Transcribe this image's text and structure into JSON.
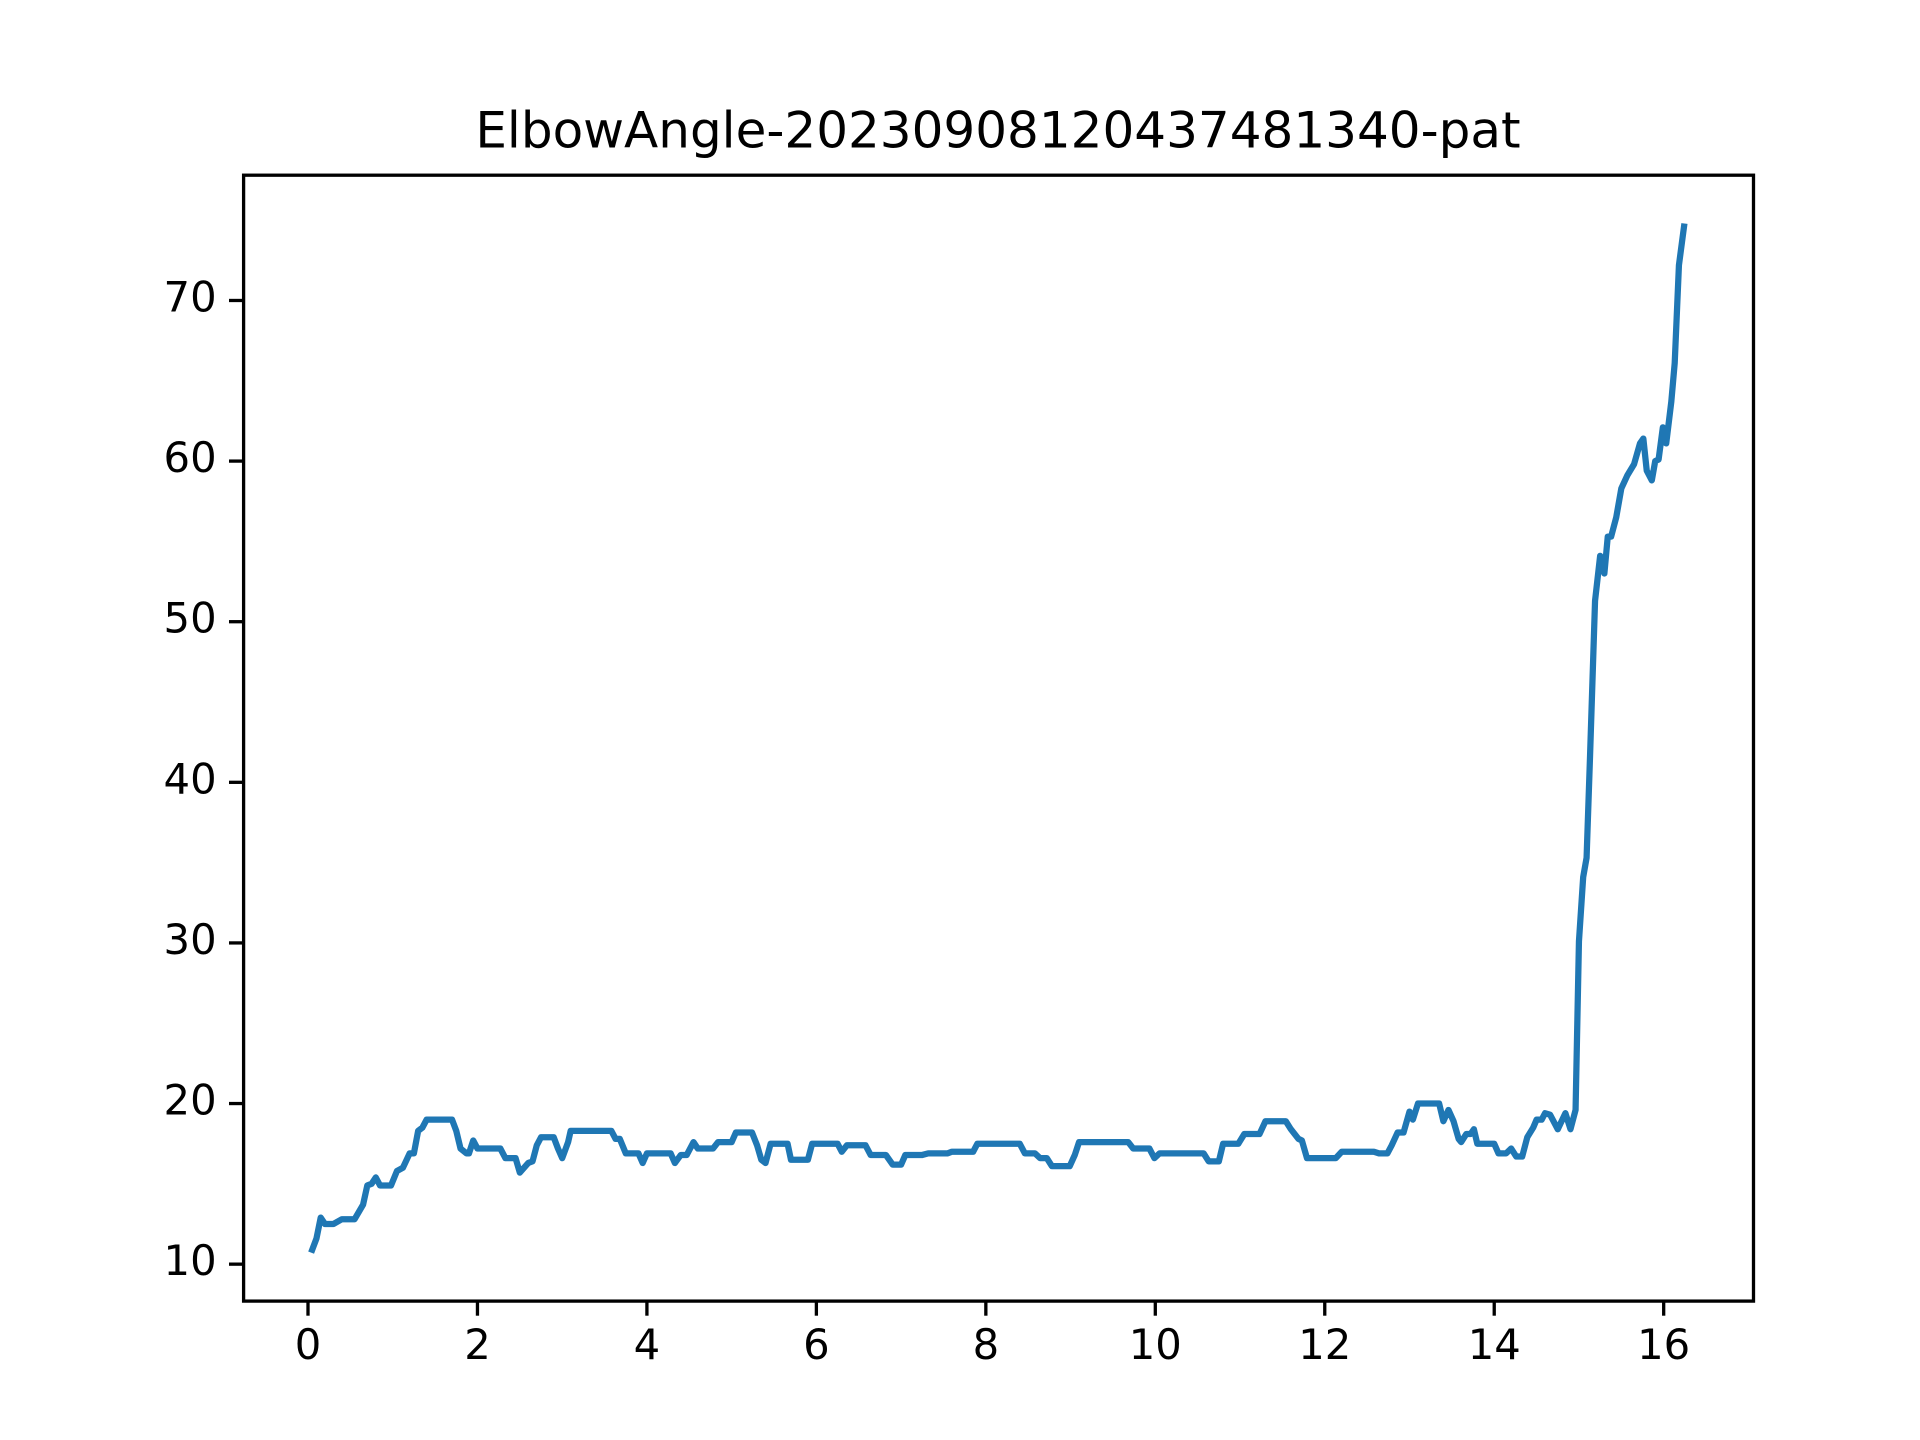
{
  "chart_data": {
    "type": "line",
    "title": "ElbowAngle-20230908120437481340-pat",
    "x": [
      0.05,
      0.1,
      0.15,
      0.2,
      0.3,
      0.4,
      0.55,
      0.65,
      0.7,
      0.75,
      0.8,
      0.85,
      0.98,
      1.05,
      1.12,
      1.2,
      1.25,
      1.3,
      1.35,
      1.4,
      1.7,
      1.75,
      1.8,
      1.87,
      1.9,
      1.95,
      2.0,
      2.27,
      2.33,
      2.45,
      2.5,
      2.6,
      2.65,
      2.7,
      2.75,
      2.9,
      2.95,
      3.0,
      3.07,
      3.1,
      3.58,
      3.63,
      3.68,
      3.75,
      3.9,
      3.95,
      4.0,
      4.28,
      4.33,
      4.4,
      4.47,
      4.55,
      4.6,
      4.78,
      4.84,
      5.0,
      5.05,
      5.24,
      5.3,
      5.35,
      5.4,
      5.46,
      5.66,
      5.7,
      5.9,
      5.95,
      6.25,
      6.3,
      6.36,
      6.58,
      6.64,
      6.82,
      6.9,
      7.0,
      7.05,
      7.25,
      7.32,
      7.55,
      7.6,
      7.85,
      7.9,
      8.4,
      8.46,
      8.58,
      8.64,
      8.72,
      8.78,
      8.99,
      9.05,
      9.1,
      9.68,
      9.74,
      9.93,
      9.99,
      10.05,
      10.57,
      10.63,
      10.75,
      10.8,
      10.98,
      11.05,
      11.23,
      11.3,
      11.54,
      11.6,
      11.69,
      11.73,
      11.79,
      12.13,
      12.2,
      12.58,
      12.64,
      12.74,
      12.79,
      12.86,
      12.93,
      13.0,
      13.04,
      13.1,
      13.35,
      13.4,
      13.46,
      13.52,
      13.58,
      13.61,
      13.67,
      13.72,
      13.76,
      13.8,
      14.0,
      14.05,
      14.14,
      14.2,
      14.26,
      14.33,
      14.39,
      14.46,
      14.5,
      14.56,
      14.6,
      14.66,
      14.75,
      14.84,
      14.9,
      14.96,
      15.0,
      15.05,
      15.09,
      15.13,
      15.19,
      15.25,
      15.3,
      15.34,
      15.38,
      15.44,
      15.5,
      15.57,
      15.65,
      15.72,
      15.76,
      15.8,
      15.86,
      15.9,
      15.94,
      15.99,
      16.03,
      16.09,
      16.13,
      16.18,
      16.24
    ],
    "values": [
      10.9,
      11.6,
      12.9,
      12.5,
      12.5,
      12.8,
      12.8,
      13.7,
      14.9,
      15.0,
      15.4,
      14.9,
      14.9,
      15.8,
      16.0,
      16.9,
      16.9,
      18.3,
      18.5,
      19.0,
      19.0,
      18.3,
      17.2,
      16.9,
      16.9,
      17.7,
      17.2,
      17.2,
      16.6,
      16.6,
      15.7,
      16.3,
      16.4,
      17.4,
      17.9,
      17.9,
      17.2,
      16.6,
      17.6,
      18.3,
      18.3,
      17.8,
      17.8,
      16.9,
      16.9,
      16.3,
      16.9,
      16.9,
      16.3,
      16.8,
      16.8,
      17.6,
      17.2,
      17.2,
      17.6,
      17.6,
      18.2,
      18.2,
      17.4,
      16.5,
      16.3,
      17.5,
      17.5,
      16.5,
      16.5,
      17.5,
      17.5,
      17.0,
      17.4,
      17.4,
      16.8,
      16.8,
      16.2,
      16.2,
      16.8,
      16.8,
      16.9,
      16.9,
      17.0,
      17.0,
      17.5,
      17.5,
      16.9,
      16.9,
      16.6,
      16.6,
      16.1,
      16.1,
      16.8,
      17.6,
      17.6,
      17.2,
      17.2,
      16.6,
      16.9,
      16.9,
      16.4,
      16.4,
      17.5,
      17.5,
      18.1,
      18.1,
      18.9,
      18.9,
      18.4,
      17.8,
      17.7,
      16.6,
      16.6,
      17.0,
      17.0,
      16.9,
      16.9,
      17.4,
      18.2,
      18.2,
      19.5,
      19.0,
      20.0,
      20.0,
      18.9,
      19.6,
      18.9,
      17.8,
      17.6,
      18.1,
      18.1,
      18.4,
      17.5,
      17.5,
      16.9,
      16.9,
      17.2,
      16.7,
      16.7,
      17.9,
      18.5,
      19.0,
      19.0,
      19.4,
      19.3,
      18.4,
      19.4,
      18.4,
      19.6,
      30.1,
      34.1,
      35.3,
      41.5,
      51.3,
      54.1,
      53.0,
      55.3,
      55.3,
      56.5,
      58.3,
      59.1,
      59.8,
      61.1,
      61.4,
      59.4,
      58.8,
      60.0,
      60.1,
      62.1,
      61.1,
      63.7,
      66.1,
      72.2,
      74.6
    ],
    "color": "#1f77b4",
    "xlim": [
      -0.76,
      17.06
    ],
    "xticks": [
      0,
      2,
      4,
      6,
      8,
      10,
      12,
      14,
      16
    ],
    "ylim": [
      7.7,
      77.8
    ],
    "yticks": [
      10,
      20,
      30,
      40,
      50,
      60,
      70
    ]
  }
}
